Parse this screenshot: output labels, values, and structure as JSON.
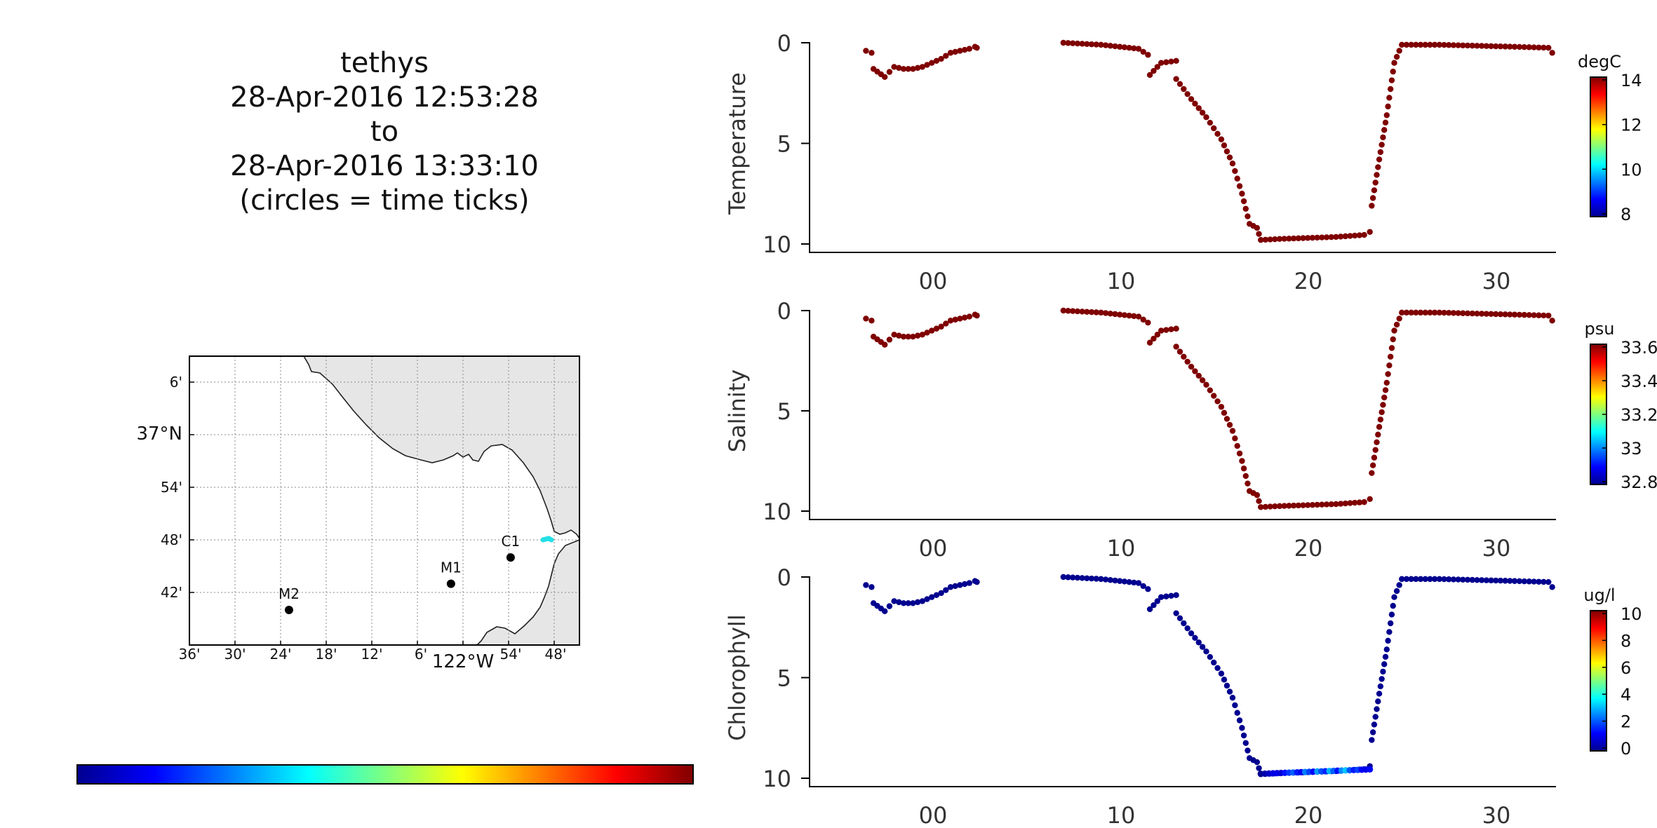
{
  "title": {
    "platform": "tethys",
    "start": "28-Apr-2016 12:53:28",
    "to": "to",
    "end": "28-Apr-2016 13:33:10",
    "note": "(circles = time ticks)"
  },
  "map": {
    "lat_ticks": [
      "6'",
      "37°N",
      "54'",
      "48'",
      "42'"
    ],
    "lon_ticks": [
      "36'",
      "30'",
      "24'",
      "18'",
      "12'",
      "6'",
      "122°W",
      "54'",
      "48'"
    ],
    "stations": [
      {
        "name": "M2",
        "lon": -122.383,
        "lat": 36.7
      },
      {
        "name": "M1",
        "lon": -122.03,
        "lat": 36.75
      },
      {
        "name": "C1",
        "lon": -121.9,
        "lat": 36.8
      }
    ],
    "land_color": "#e6e6e6",
    "track_color": "#22e0e6"
  },
  "chart_data": [
    {
      "type": "scatter",
      "ylabel": "Temperature",
      "colorbar_unit": "degC",
      "colorbar_ticks": [
        "14",
        "12",
        "10",
        "8"
      ],
      "color": "#7f0000",
      "ylim": [
        10,
        0
      ],
      "xlim": [
        -6.5,
        33.2
      ],
      "xtick_labels": [
        "00",
        "10",
        "20",
        "30"
      ]
    },
    {
      "type": "scatter",
      "ylabel": "Salinity",
      "colorbar_unit": "psu",
      "colorbar_ticks": [
        "33.6",
        "33.4",
        "33.2",
        "33",
        "32.8"
      ],
      "color": "#7f0000",
      "ylim": [
        10,
        0
      ],
      "xlim": [
        -6.5,
        33.2
      ],
      "xtick_labels": [
        "00",
        "10",
        "20",
        "30"
      ]
    },
    {
      "type": "scatter",
      "ylabel": "Chlorophyll",
      "colorbar_unit": "ug/l",
      "colorbar_ticks": [
        "10",
        "8",
        "6",
        "4",
        "2",
        "0"
      ],
      "color": "#00008f",
      "ylim": [
        10,
        0
      ],
      "xlim": [
        -6.5,
        33.2
      ],
      "xtick_labels": [
        "00",
        "10",
        "20",
        "30"
      ],
      "bottom_values": [
        0.0,
        0.3,
        0.6,
        0.9,
        1.0,
        0.8,
        1.4,
        1.8,
        2.2,
        1.5,
        1.1,
        2.5,
        1.9,
        1.2,
        2.8,
        2.0,
        1.6,
        3.0,
        2.2,
        1.4,
        2.6,
        3.2,
        2.1,
        1.5,
        1.9,
        1.2,
        1.0,
        1.3
      ]
    }
  ],
  "path": {
    "segments": [
      [
        [
          -3.5,
          0.4
        ],
        [
          -3.2,
          0.5
        ]
      ],
      [
        [
          -3.1,
          1.3
        ],
        [
          -2.5,
          1.7
        ],
        [
          -2.0,
          1.2
        ],
        [
          -1.5,
          1.3
        ],
        [
          -1.0,
          1.3
        ],
        [
          -0.5,
          1.2
        ],
        [
          0.0,
          1.0
        ],
        [
          0.5,
          0.8
        ],
        [
          1.0,
          0.5
        ],
        [
          1.5,
          0.4
        ],
        [
          2.0,
          0.3
        ],
        [
          2.3,
          0.2
        ],
        [
          2.4,
          0.25
        ]
      ],
      [
        [
          7.0,
          0.0
        ],
        [
          9.0,
          0.1
        ],
        [
          11.0,
          0.3
        ],
        [
          11.5,
          0.6
        ]
      ],
      [
        [
          11.6,
          1.6
        ],
        [
          12.2,
          1.0
        ],
        [
          13.0,
          0.9
        ]
      ],
      [
        [
          13.0,
          1.8
        ],
        [
          13.8,
          2.8
        ],
        [
          14.6,
          3.7
        ],
        [
          15.4,
          4.8
        ],
        [
          16.0,
          6.0
        ],
        [
          16.5,
          7.5
        ],
        [
          16.9,
          9.0
        ],
        [
          17.3,
          9.2
        ],
        [
          17.5,
          9.8
        ],
        [
          18.5,
          9.75
        ],
        [
          20.0,
          9.7
        ],
        [
          21.5,
          9.65
        ],
        [
          23.0,
          9.55
        ],
        [
          23.3,
          9.4
        ]
      ],
      [
        [
          23.4,
          8.1
        ],
        [
          23.8,
          5.8
        ],
        [
          24.2,
          3.6
        ],
        [
          24.6,
          1.0
        ],
        [
          25.0,
          0.1
        ],
        [
          27.0,
          0.1
        ],
        [
          29.0,
          0.15
        ],
        [
          31.0,
          0.2
        ],
        [
          32.8,
          0.25
        ],
        [
          33.0,
          0.5
        ]
      ]
    ],
    "bottom_span": [
      17.5,
      23.3
    ]
  }
}
